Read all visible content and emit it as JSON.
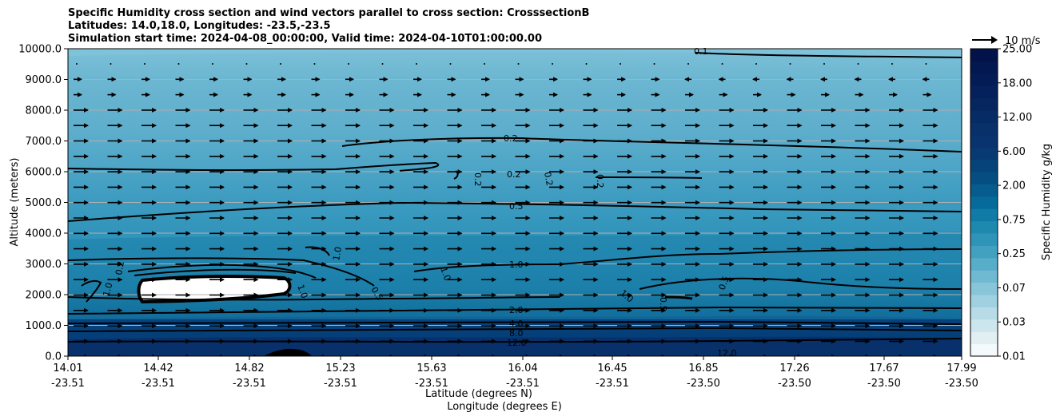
{
  "title_lines": [
    "Specific Humidity cross section and wind vectors parallel to cross section: CrosssectionB",
    "Latitudes: 14.0,18.0, Longitudes: -23.5,-23.5",
    "Simulation start time: 2024-04-08_00:00:00, Valid time: 2024-04-10T01:00:00.00"
  ],
  "chart_data": {
    "type": "heatmap",
    "title": "Specific Humidity cross section and wind vectors parallel to cross section: CrosssectionB",
    "xlabel_lat": "Latitude (degrees N)",
    "xlabel_lon": "Longitude (degrees E)",
    "ylabel": "Altitude (meters)",
    "ylim": [
      0,
      10000
    ],
    "grid": "horizontal lines at y ticks",
    "x_ticks": [
      {
        "lat": "14.01",
        "lon": "-23.51"
      },
      {
        "lat": "14.42",
        "lon": "-23.51"
      },
      {
        "lat": "14.82",
        "lon": "-23.51"
      },
      {
        "lat": "15.23",
        "lon": "-23.51"
      },
      {
        "lat": "15.63",
        "lon": "-23.51"
      },
      {
        "lat": "16.04",
        "lon": "-23.51"
      },
      {
        "lat": "16.45",
        "lon": "-23.51"
      },
      {
        "lat": "16.85",
        "lon": "-23.50"
      },
      {
        "lat": "17.26",
        "lon": "-23.50"
      },
      {
        "lat": "17.67",
        "lon": "-23.50"
      },
      {
        "lat": "17.99",
        "lon": "-23.50"
      }
    ],
    "y_ticks": [
      "0.0",
      "1000.0",
      "2000.0",
      "3000.0",
      "4000.0",
      "5000.0",
      "6000.0",
      "7000.0",
      "8000.0",
      "9000.0",
      "10000.0"
    ],
    "colorbar": {
      "label": "Specific Humidity g/kg",
      "ticks": [
        "0.01",
        "0.03",
        "0.07",
        "0.25",
        "0.75",
        "2.00",
        "6.00",
        "12.00",
        "18.00",
        "25.00"
      ]
    },
    "quiver_key": {
      "label": "10 m/s"
    },
    "contour_labels": [
      "0.1",
      "0.2",
      "0.2",
      "0.2",
      "0.2",
      "0.2",
      "0.5",
      "1.0",
      "1.0",
      "2.0",
      "4.0",
      "8.0",
      "12.0",
      "12.0",
      "0.5",
      "0.5",
      "1.0",
      "1.0",
      "0.2",
      "0.5",
      "1.0",
      "1.0"
    ],
    "colors": {
      "near_surface": "#08306b",
      "mid_low": "#1f83ab",
      "mid": "#3598bd",
      "upper": "#66b3cf",
      "top": "#78bed6",
      "contour": "#000000"
    }
  }
}
